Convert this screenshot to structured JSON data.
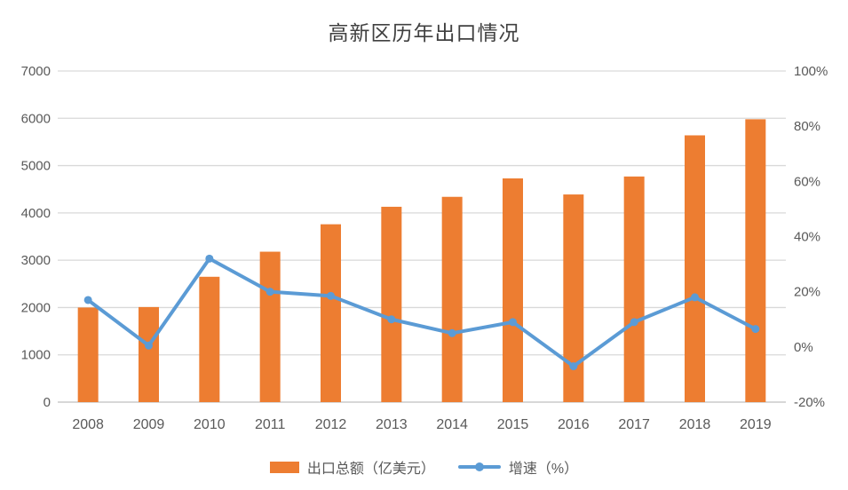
{
  "chart_data": {
    "type": "combo-bar-line",
    "title": "高新区历年出口情况",
    "categories": [
      "2008",
      "2009",
      "2010",
      "2011",
      "2012",
      "2013",
      "2014",
      "2015",
      "2016",
      "2017",
      "2018",
      "2019"
    ],
    "series": [
      {
        "name": "出口总额（亿美元）",
        "type": "bar",
        "axis": "left",
        "color": "#ED7D31",
        "values": [
          2000,
          2010,
          2650,
          3180,
          3760,
          4130,
          4340,
          4730,
          4390,
          4770,
          5640,
          5980
        ]
      },
      {
        "name": "增速（%）",
        "type": "line",
        "axis": "right",
        "color": "#5B9BD5",
        "values": [
          17,
          0.5,
          32,
          20,
          18.5,
          10,
          5,
          9,
          -7,
          9,
          18,
          6.5
        ]
      }
    ],
    "left_axis": {
      "min": 0,
      "max": 7000,
      "step": 1000,
      "labels": [
        "0",
        "1000",
        "2000",
        "3000",
        "4000",
        "5000",
        "6000",
        "7000"
      ]
    },
    "right_axis": {
      "min": -20,
      "max": 100,
      "step": 20,
      "labels": [
        "-20%",
        "0%",
        "20%",
        "40%",
        "60%",
        "80%",
        "100%"
      ]
    },
    "grid": true,
    "legend_position": "bottom",
    "colors": {
      "grid": "#D9D9D9",
      "axis_line": "#BFBFBF",
      "axis_text": "#595959",
      "title_text": "#404040",
      "background": "#FFFFFF"
    }
  }
}
